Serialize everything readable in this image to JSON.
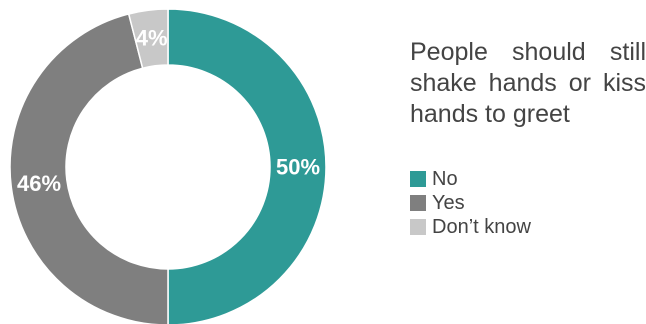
{
  "chart_data": {
    "type": "pie",
    "title": "People should still shake hands or kiss hands to greet",
    "categories": [
      "No",
      "Yes",
      "Don’t know"
    ],
    "values": [
      50,
      46,
      4
    ],
    "value_labels": [
      "50%",
      "46%",
      "4%"
    ],
    "colors": [
      "#2E9A96",
      "#7F7F7F",
      "#C8C8C8"
    ],
    "donut": true,
    "legend_position": "right"
  }
}
